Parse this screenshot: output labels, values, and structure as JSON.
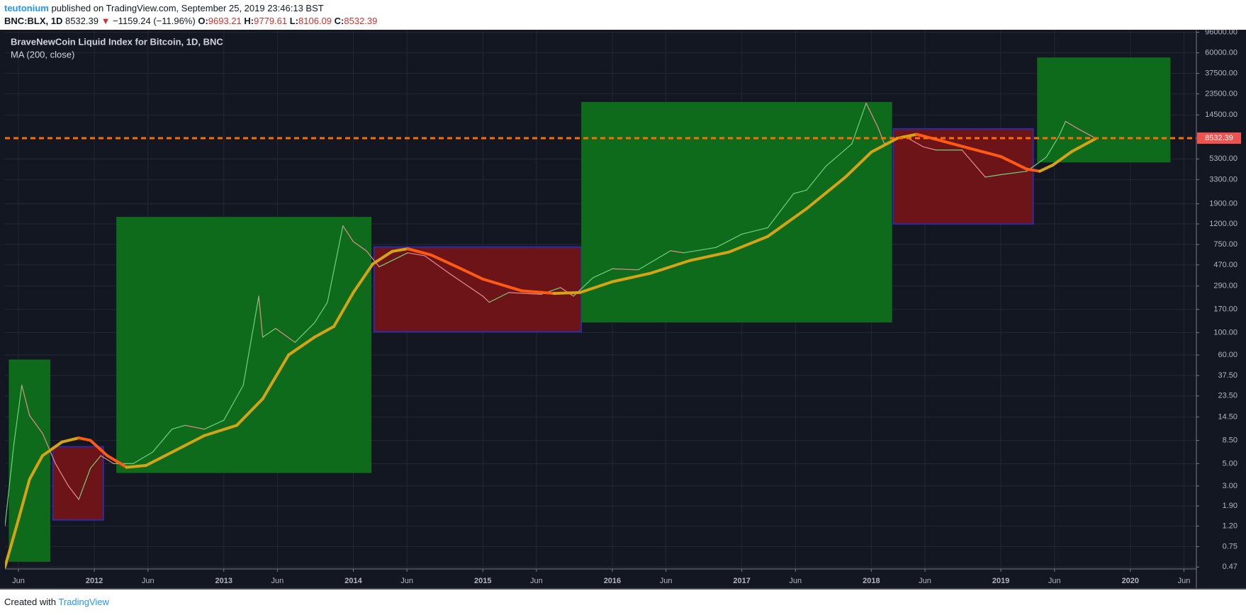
{
  "chart_data": {
    "type": "line",
    "publisher": "teutonium",
    "published": "published on TradingView.com, September 25, 2019 23:46:13 BST",
    "symbol": "BNC:BLX, 1D",
    "last_price": 8532.39,
    "direction": "▼",
    "change": "−1159.24 (−11.96%)",
    "ohlc": [
      {
        "label": "O:",
        "value": 9693.21
      },
      {
        "label": "H:",
        "value": 9779.61
      },
      {
        "label": "L:",
        "value": 8106.09
      },
      {
        "label": "C:",
        "value": 8532.39
      }
    ],
    "title": "BraveNewCoin Liquid Index for Bitcoin, 1D, BNC",
    "footer": "Created with",
    "brand": "TradingView",
    "log_scale": true,
    "grid": true,
    "last_price_color": "#ff6d00",
    "xlim": [
      2011.31,
      2020.51
    ],
    "ylim": [
      0.45,
      100000
    ],
    "xticks": [
      {
        "value": 2011.414,
        "label": "Jun"
      },
      2012,
      {
        "value": 2012.414,
        "label": "Jun"
      },
      2013,
      {
        "value": 2013.414,
        "label": "Jun"
      },
      2014,
      {
        "value": 2014.414,
        "label": "Jun"
      },
      2015,
      {
        "value": 2015.414,
        "label": "Jun"
      },
      2016,
      {
        "value": 2016.414,
        "label": "Jun"
      },
      2017,
      {
        "value": 2017.414,
        "label": "Jun"
      },
      2018,
      {
        "value": 2018.414,
        "label": "Jun"
      },
      2019,
      {
        "value": 2019.414,
        "label": "Jun"
      },
      2020,
      {
        "value": 2020.414,
        "label": "Jun"
      }
    ],
    "yticks": [
      0.47,
      0.75,
      {
        "value": 1.2,
        "label": "1.20"
      },
      {
        "value": 1.9,
        "label": "1.90"
      },
      {
        "value": 3,
        "label": "3.00"
      },
      {
        "value": 5,
        "label": "5.00"
      },
      {
        "value": 8.5,
        "label": "8.50"
      },
      {
        "value": 14.5,
        "label": "14.50"
      },
      {
        "value": 23.5,
        "label": "23.50"
      },
      {
        "value": 37.5,
        "label": "37.50"
      },
      {
        "value": 60,
        "label": "60.00"
      },
      {
        "value": 100,
        "label": "100.00"
      },
      {
        "value": 170,
        "label": "170.00"
      },
      {
        "value": 290,
        "label": "290.00"
      },
      {
        "value": 470,
        "label": "470.00"
      },
      {
        "value": 750,
        "label": "750.00"
      },
      {
        "value": 1200,
        "label": "1200.00"
      },
      {
        "value": 1900,
        "label": "1900.00"
      },
      {
        "value": 3300,
        "label": "3300.00"
      },
      {
        "value": 5300,
        "label": "5300.00"
      },
      {
        "value": 14500,
        "label": "14500.00"
      },
      {
        "value": 23500,
        "label": "23500.00"
      },
      {
        "value": 37500,
        "label": "37500.00"
      },
      {
        "value": 60000,
        "label": "60000.00"
      },
      {
        "value": 96000,
        "label": "96000.00"
      }
    ],
    "boxes": [
      {
        "x": [
          2011.34,
          2011.66
        ],
        "y": [
          0.53,
          54
        ],
        "color": "#0e6b1b"
      },
      {
        "x": [
          2011.68,
          2012.07
        ],
        "y": [
          1.38,
          7.36
        ],
        "color": "#6d1419",
        "border": "#2b2ba6"
      },
      {
        "x": [
          2012.17,
          2014.14
        ],
        "y": [
          4.04,
          1410
        ],
        "color": "#0e6b1b"
      },
      {
        "x": [
          2014.16,
          2015.76
        ],
        "y": [
          102,
          708
        ],
        "color": "#6d1419",
        "border": "#2b2ba6"
      },
      {
        "x": [
          2015.76,
          2018.16
        ],
        "y": [
          126,
          19500
        ],
        "color": "#0e6b1b"
      },
      {
        "x": [
          2018.17,
          2019.25
        ],
        "y": [
          1200,
          10540
        ],
        "color": "#6d1419",
        "border": "#2b2ba6"
      },
      {
        "x": [
          2019.28,
          2020.31
        ],
        "y": [
          4900,
          53900
        ],
        "color": "#0e6b1b"
      }
    ],
    "series": [
      {
        "color": "#6fd17c",
        "down_color": "#e88a8f",
        "x": [
          2011.31,
          2011.38,
          2011.44,
          2011.5,
          2011.6,
          2011.7,
          2011.8,
          2011.88,
          2011.97,
          2012.05,
          2012.15,
          2012.3,
          2012.45,
          2012.6,
          2012.7,
          2012.85,
          2013.0,
          2013.15,
          2013.27,
          2013.3,
          2013.4,
          2013.55,
          2013.7,
          2013.8,
          2013.92,
          2014.0,
          2014.1,
          2014.2,
          2014.42,
          2014.55,
          2014.75,
          2015.0,
          2015.05,
          2015.2,
          2015.45,
          2015.6,
          2015.7,
          2015.85,
          2016.0,
          2016.2,
          2016.45,
          2016.55,
          2016.8,
          2017.0,
          2017.2,
          2017.4,
          2017.5,
          2017.65,
          2017.85,
          2017.96,
          2018.05,
          2018.1,
          2018.25,
          2018.4,
          2018.5,
          2018.7,
          2018.88,
          2019.0,
          2019.2,
          2019.35,
          2019.45,
          2019.5,
          2019.6,
          2019.73
        ],
        "values": [
          1.2,
          8,
          30,
          15,
          10,
          5,
          3,
          2.2,
          4.5,
          6,
          5,
          5,
          6.5,
          11,
          12,
          11,
          13.5,
          30,
          230,
          90,
          110,
          80,
          125,
          200,
          1150,
          800,
          650,
          450,
          620,
          580,
          380,
          230,
          200,
          250,
          240,
          280,
          230,
          350,
          430,
          420,
          650,
          620,
          700,
          950,
          1100,
          2400,
          2600,
          4500,
          7500,
          19000,
          11000,
          7500,
          9000,
          7000,
          6500,
          6500,
          3500,
          3700,
          4000,
          5500,
          9000,
          12500,
          10500,
          8532.39
        ]
      },
      {
        "name": "MA (200, close)",
        "color": "#d4a415",
        "down_color": "#ff5a14",
        "x": [
          2011.31,
          2011.4,
          2011.5,
          2011.6,
          2011.75,
          2011.88,
          2011.97,
          2012.1,
          2012.25,
          2012.4,
          2012.6,
          2012.85,
          2013.1,
          2013.3,
          2013.5,
          2013.7,
          2013.85,
          2014.0,
          2014.15,
          2014.3,
          2014.42,
          2014.6,
          2014.8,
          2015.0,
          2015.3,
          2015.55,
          2015.75,
          2016.0,
          2016.3,
          2016.6,
          2016.9,
          2017.2,
          2017.5,
          2017.8,
          2018.0,
          2018.2,
          2018.35,
          2018.5,
          2018.75,
          2019.0,
          2019.2,
          2019.3,
          2019.4,
          2019.55,
          2019.73
        ],
        "values": [
          0.47,
          1.2,
          3.5,
          6,
          8.2,
          9,
          8.5,
          6,
          4.6,
          4.8,
          6.5,
          9.5,
          12,
          22,
          60,
          90,
          115,
          250,
          480,
          640,
          680,
          590,
          450,
          340,
          260,
          245,
          250,
          320,
          390,
          520,
          630,
          900,
          1700,
          3500,
          6200,
          8500,
          9300,
          8300,
          6800,
          5600,
          4200,
          4000,
          4600,
          6300,
          8400
        ]
      }
    ]
  }
}
